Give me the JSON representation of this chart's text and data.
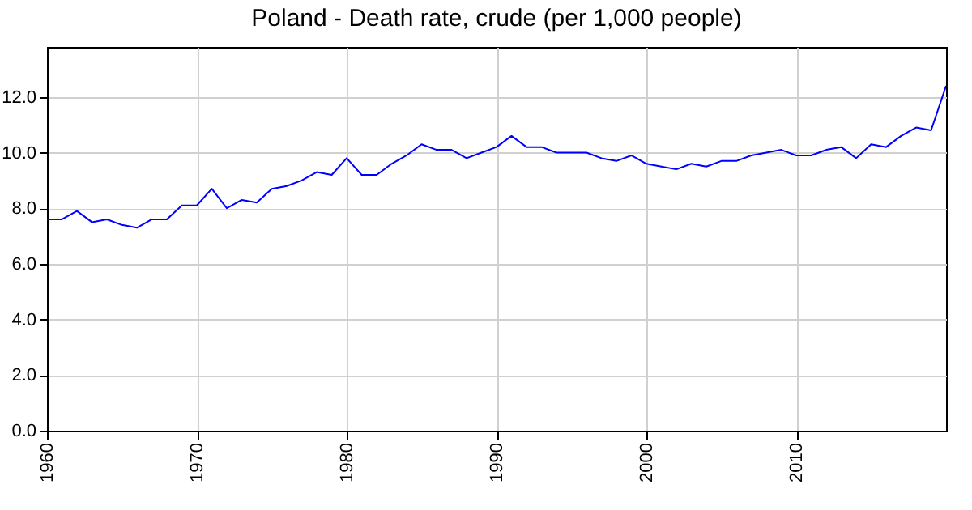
{
  "chart_data": {
    "type": "line",
    "title": "Poland - Death rate, crude (per 1,000 people)",
    "x": [
      1960,
      1961,
      1962,
      1963,
      1964,
      1965,
      1966,
      1967,
      1968,
      1969,
      1970,
      1971,
      1972,
      1973,
      1974,
      1975,
      1976,
      1977,
      1978,
      1979,
      1980,
      1981,
      1982,
      1983,
      1984,
      1985,
      1986,
      1987,
      1988,
      1989,
      1990,
      1991,
      1992,
      1993,
      1994,
      1995,
      1996,
      1997,
      1998,
      1999,
      2000,
      2001,
      2002,
      2003,
      2004,
      2005,
      2006,
      2007,
      2008,
      2009,
      2010,
      2011,
      2012,
      2013,
      2014,
      2015,
      2016,
      2017,
      2018,
      2019,
      2020
    ],
    "series": [
      {
        "color": "#0000ff",
        "values": [
          7.6,
          7.6,
          7.9,
          7.5,
          7.6,
          7.4,
          7.3,
          7.6,
          7.6,
          8.1,
          8.1,
          8.7,
          8.0,
          8.3,
          8.2,
          8.7,
          8.8,
          9.0,
          9.3,
          9.2,
          9.8,
          9.2,
          9.2,
          9.6,
          9.9,
          10.3,
          10.1,
          10.1,
          9.8,
          10.0,
          10.2,
          10.6,
          10.2,
          10.2,
          10.0,
          10.0,
          10.0,
          9.8,
          9.7,
          9.9,
          9.6,
          9.5,
          9.4,
          9.6,
          9.5,
          9.7,
          9.7,
          9.9,
          10.0,
          10.1,
          9.9,
          9.9,
          10.1,
          10.2,
          9.8,
          10.3,
          10.2,
          10.6,
          10.9,
          10.8,
          12.4
        ]
      }
    ],
    "xlim": [
      1960,
      2020
    ],
    "xticks": [
      1960,
      1970,
      1980,
      1990,
      2000,
      2010
    ],
    "ylim": [
      0,
      13.8
    ],
    "yticks": [
      {
        "value": 0,
        "label": "0.0"
      },
      {
        "value": 2,
        "label": "2.0"
      },
      {
        "value": 4,
        "label": "4.0"
      },
      {
        "value": 6,
        "label": "6.0"
      },
      {
        "value": 8,
        "label": "8.0"
      },
      {
        "value": 10,
        "label": "10.0"
      },
      {
        "value": 12,
        "label": "12.0"
      }
    ],
    "grid": true,
    "line_style": "solid"
  }
}
